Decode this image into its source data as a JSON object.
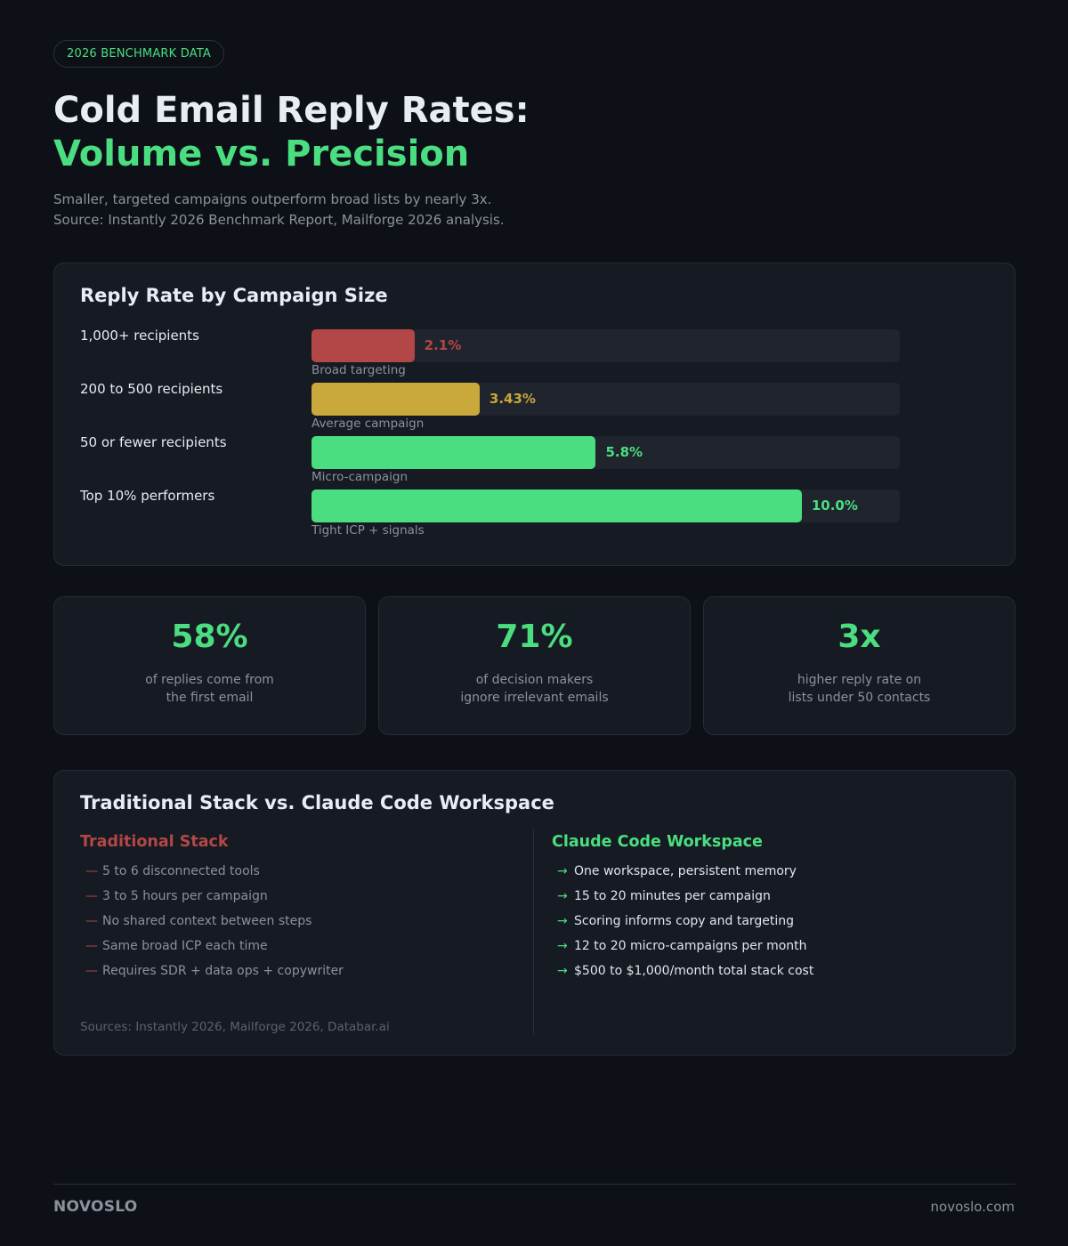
{
  "header": {
    "badge": "2026 BENCHMARK DATA",
    "title_line1": "Cold Email Reply Rates:",
    "title_line2": "Volume vs. Precision",
    "subtitle_line1": "Smaller, targeted campaigns outperform broad lists by nearly 3x.",
    "subtitle_line2": "Source: Instantly 2026 Benchmark Report, Mailforge 2026 analysis."
  },
  "chart": {
    "title": "Reply Rate by Campaign Size",
    "rows": [
      {
        "label": "1,000+ recipients",
        "value": 2.1,
        "value_label": "2.1%",
        "sub": "Broad targeting",
        "color": "#b34747"
      },
      {
        "label": "200 to 500 recipients",
        "value": 3.43,
        "value_label": "3.43%",
        "sub": "Average campaign",
        "color": "#c9a83c"
      },
      {
        "label": "50 or fewer recipients",
        "value": 5.8,
        "value_label": "5.8%",
        "sub": "Micro-campaign",
        "color": "#4ade80"
      },
      {
        "label": "Top 10% performers",
        "value": 10.0,
        "value_label": "10.0%",
        "sub": "Tight ICP + signals",
        "color": "#4ade80"
      }
    ]
  },
  "chart_data": {
    "type": "bar",
    "orientation": "horizontal",
    "title": "Reply Rate by Campaign Size",
    "categories": [
      "1,000+ recipients",
      "200 to 500 recipients",
      "50 or fewer recipients",
      "Top 10% performers"
    ],
    "values": [
      2.1,
      3.43,
      5.8,
      10.0
    ],
    "value_labels": [
      "2.1%",
      "3.43%",
      "5.8%",
      "10.0%"
    ],
    "annotations": [
      "Broad targeting",
      "Average campaign",
      "Micro-campaign",
      "Tight ICP + signals"
    ],
    "colors": [
      "#b34747",
      "#c9a83c",
      "#4ade80",
      "#4ade80"
    ],
    "xlabel": "",
    "ylabel": "",
    "xlim": [
      0,
      12
    ],
    "grid": false
  },
  "stats": [
    {
      "value": "58%",
      "line1": "of replies come from",
      "line2": "the first email"
    },
    {
      "value": "71%",
      "line1": "of decision makers",
      "line2": "ignore irrelevant emails"
    },
    {
      "value": "3x",
      "line1": "higher reply rate on",
      "line2": "lists under 50 contacts"
    }
  ],
  "comparison": {
    "title": "Traditional Stack vs. Claude Code Workspace",
    "left": {
      "title": "Traditional Stack",
      "color": "#b34747",
      "marker": "—",
      "items": [
        "5 to 6 disconnected tools",
        "3 to 5 hours per campaign",
        "No shared context between steps",
        "Same broad ICP each time",
        "Requires SDR + data ops + copywriter"
      ]
    },
    "right": {
      "title": "Claude Code Workspace",
      "color": "#4ade80",
      "marker": "→",
      "items": [
        "One workspace, persistent memory",
        "15 to 20 minutes per campaign",
        "Scoring informs copy and targeting",
        "12 to 20 micro-campaigns per month",
        "$500 to $1,000/month total stack cost"
      ]
    },
    "sources": "Sources: Instantly 2026, Mailforge 2026, Databar.ai"
  },
  "footer": {
    "brand": "NOVOSLO",
    "site": "novoslo.com"
  }
}
